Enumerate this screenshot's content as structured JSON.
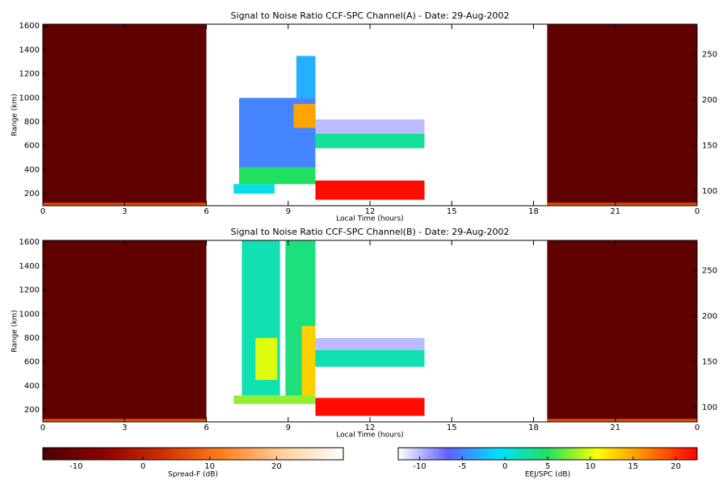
{
  "chart_data": [
    {
      "type": "heatmap",
      "title": "Signal to Noise Ratio CCF-SPC Channel(A) - Date: 29-Aug-2002",
      "xlabel": "Local Time (hours)",
      "ylabel": "Range (km)",
      "xlim": [
        0,
        24
      ],
      "xticks": [
        0,
        3,
        6,
        9,
        12,
        15,
        18,
        21,
        {
          "value": 24,
          "label": "0"
        }
      ],
      "ylim": [
        100,
        1615
      ],
      "yticks": [
        200,
        400,
        600,
        800,
        1000,
        1200,
        1400,
        1600
      ],
      "y2lim": [
        84,
        283
      ],
      "y2ticks": [
        100,
        150,
        200,
        250
      ],
      "spread_f_cells": [
        {
          "x": [
            0,
            6
          ],
          "y": [
            100,
            1615
          ],
          "value": -12
        },
        {
          "x": [
            0,
            6
          ],
          "y": [
            100,
            125
          ],
          "value": 6
        },
        {
          "x": [
            18.5,
            24
          ],
          "y": [
            100,
            1615
          ],
          "value": -12
        },
        {
          "x": [
            18.5,
            24
          ],
          "y": [
            100,
            125
          ],
          "value": 6
        }
      ],
      "eej_cells": [
        {
          "x": [
            7.2,
            10
          ],
          "y": [
            420,
            1000
          ],
          "value": -5
        },
        {
          "x": [
            9.3,
            10
          ],
          "y": [
            1000,
            1350
          ],
          "value": -3
        },
        {
          "x": [
            7.2,
            10
          ],
          "y": [
            280,
            420
          ],
          "value": 5
        },
        {
          "x": [
            7.0,
            8.5
          ],
          "y": [
            200,
            280
          ],
          "value": 0
        },
        {
          "x": [
            9.2,
            10
          ],
          "y": [
            750,
            950
          ],
          "value": 15
        },
        {
          "x": [
            10,
            14
          ],
          "y": [
            700,
            820
          ],
          "value": -10
        },
        {
          "x": [
            10,
            14
          ],
          "y": [
            580,
            700
          ],
          "value": 3
        },
        {
          "x": [
            10,
            14
          ],
          "y": [
            150,
            310
          ],
          "value": 22
        }
      ]
    },
    {
      "type": "heatmap",
      "title": "Signal to Noise Ratio CCF-SPC Channel(B) - Date: 29-Aug-2002",
      "xlabel": "Local Time (hours)",
      "ylabel": "Range (km)",
      "xlim": [
        0,
        24
      ],
      "xticks": [
        0,
        3,
        6,
        9,
        12,
        15,
        18,
        21,
        {
          "value": 24,
          "label": "0"
        }
      ],
      "ylim": [
        100,
        1615
      ],
      "yticks": [
        200,
        400,
        600,
        800,
        1000,
        1200,
        1400,
        1600
      ],
      "y2lim": [
        84,
        283
      ],
      "y2ticks": [
        100,
        150,
        200,
        250
      ],
      "spread_f_cells": [
        {
          "x": [
            0,
            6
          ],
          "y": [
            100,
            1615
          ],
          "value": -12
        },
        {
          "x": [
            0,
            6
          ],
          "y": [
            100,
            125
          ],
          "value": 6
        },
        {
          "x": [
            18.5,
            24
          ],
          "y": [
            100,
            1615
          ],
          "value": -12
        },
        {
          "x": [
            18.5,
            24
          ],
          "y": [
            100,
            125
          ],
          "value": 6
        }
      ],
      "eej_cells": [
        {
          "x": [
            7.3,
            8.7
          ],
          "y": [
            320,
            1615
          ],
          "value": 2
        },
        {
          "x": [
            8.9,
            10
          ],
          "y": [
            320,
            1615
          ],
          "value": 4
        },
        {
          "x": [
            7.8,
            8.6
          ],
          "y": [
            450,
            800
          ],
          "value": 10
        },
        {
          "x": [
            9.5,
            10
          ],
          "y": [
            300,
            900
          ],
          "value": 13
        },
        {
          "x": [
            7.0,
            10
          ],
          "y": [
            250,
            320
          ],
          "value": 8
        },
        {
          "x": [
            10,
            14
          ],
          "y": [
            700,
            800
          ],
          "value": -10
        },
        {
          "x": [
            10,
            14
          ],
          "y": [
            560,
            700
          ],
          "value": 2
        },
        {
          "x": [
            10,
            14
          ],
          "y": [
            150,
            300
          ],
          "value": 22
        }
      ]
    },
    {
      "type": "colorbar",
      "xlabel": "Spread-F (dB)",
      "xlim": [
        -15,
        30
      ],
      "xticks": [
        -10,
        0,
        10,
        20
      ],
      "colormap": [
        "#4a0000",
        "#8b0000",
        "#d03000",
        "#ff8020",
        "#ffd0a0",
        "#ffffff"
      ]
    },
    {
      "type": "colorbar",
      "xlabel": "EEJ/SPC (dB)",
      "xlim": [
        -12.5,
        22.5
      ],
      "xticks": [
        -10,
        -5,
        0,
        5,
        10,
        15,
        20
      ],
      "colormap": [
        "#ffffff",
        "#6060ff",
        "#00e0ff",
        "#20e060",
        "#ffff00",
        "#ff8000",
        "#ff0000"
      ]
    }
  ]
}
